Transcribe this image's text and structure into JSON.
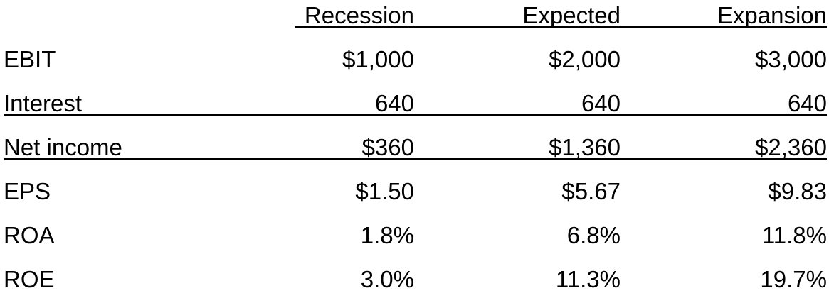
{
  "table": {
    "headers": [
      "Recession",
      "Expected",
      "Expansion"
    ],
    "rows": [
      {
        "label": "EBIT",
        "values": [
          "$1,000",
          "$2,000",
          "$3,000"
        ]
      },
      {
        "label": "Interest",
        "values": [
          "640",
          "640",
          "640"
        ]
      },
      {
        "label": "Net income",
        "values": [
          "$360",
          "$1,360",
          "$2,360"
        ]
      },
      {
        "label": "EPS",
        "values": [
          "$1.50",
          "$5.67",
          "$9.83"
        ]
      },
      {
        "label": "ROA",
        "values": [
          "1.8%",
          "6.8%",
          "11.8%"
        ]
      },
      {
        "label": "ROE",
        "values": [
          "3.0%",
          "11.3%",
          "19.7%"
        ]
      }
    ]
  }
}
